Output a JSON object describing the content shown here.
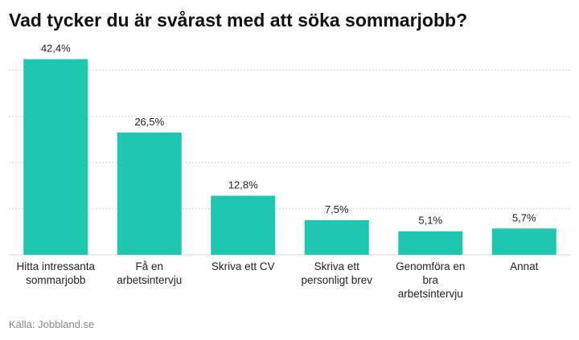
{
  "chart_data": {
    "type": "bar",
    "title": "Vad tycker du är svårast med att söka sommarjobb?",
    "categories": [
      "Hitta intressanta\nsommarjobb",
      "Få en\narbetsintervju",
      "Skriva ett CV",
      "Skriva ett\npersonligt brev",
      "Genomföra en\nbra\narbetsintervju",
      "Annat"
    ],
    "values": [
      42.4,
      26.5,
      12.8,
      7.5,
      5.1,
      5.7
    ],
    "value_labels": [
      "42,4%",
      "26,5%",
      "12,8%",
      "7,5%",
      "5,1%",
      "5,7%"
    ],
    "color": "#1ec8b0",
    "ylim": [
      0,
      50
    ],
    "yticks": [
      0,
      10,
      20,
      30,
      40
    ],
    "tick_labels": false,
    "grid": true,
    "source": "Källa: Jobbland.se"
  }
}
